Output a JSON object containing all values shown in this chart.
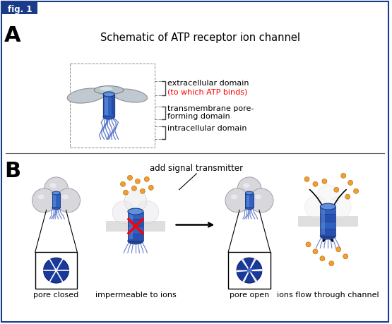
{
  "fig_label": "fig. 1",
  "fig_label_bg": "#1a3a8a",
  "fig_label_color": "#ffffff",
  "panel_A_label": "A",
  "panel_B_label": "B",
  "panel_A_title": "Schematic of ATP receptor ion channel",
  "label_extracellular": "extracellular domain",
  "label_red": "(to which ATP binds)",
  "label_transmembrane1": "transmembrane pore-",
  "label_transmembrane2": "forming domain",
  "label_intracellular": "intracellular domain",
  "bottom_labels": [
    "pore closed",
    "impermeable to ions",
    "pore open",
    "ions flow through channel"
  ],
  "arrow_label": "add signal transmitter",
  "border_color": "#1a3a8a",
  "bg_color": "#ffffff",
  "blue_dark": "#1a3a8a",
  "blue_mid": "#3060c0",
  "blue_light": "#6090d8",
  "orange_dot": "#f0a030",
  "membrane_gray": "#c8c8c8",
  "sphere_color": "#d8d8dc",
  "sphere_edge": "#a0a0a8"
}
